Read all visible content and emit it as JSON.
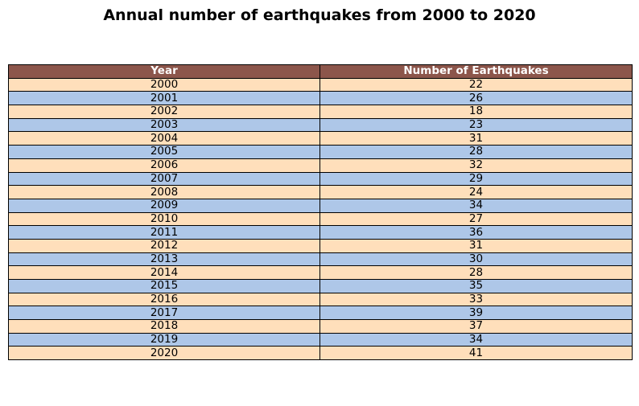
{
  "chart_data": {
    "type": "table",
    "title": "Annual number of earthquakes from 2000 to 2020",
    "columns": [
      "Year",
      "Number of Earthquakes"
    ],
    "rows": [
      [
        "2000",
        "22"
      ],
      [
        "2001",
        "26"
      ],
      [
        "2002",
        "18"
      ],
      [
        "2003",
        "23"
      ],
      [
        "2004",
        "31"
      ],
      [
        "2005",
        "28"
      ],
      [
        "2006",
        "32"
      ],
      [
        "2007",
        "29"
      ],
      [
        "2008",
        "24"
      ],
      [
        "2009",
        "34"
      ],
      [
        "2010",
        "27"
      ],
      [
        "2011",
        "36"
      ],
      [
        "2012",
        "31"
      ],
      [
        "2013",
        "30"
      ],
      [
        "2014",
        "28"
      ],
      [
        "2015",
        "35"
      ],
      [
        "2016",
        "33"
      ],
      [
        "2017",
        "39"
      ],
      [
        "2018",
        "37"
      ],
      [
        "2019",
        "34"
      ],
      [
        "2020",
        "41"
      ]
    ],
    "colors": {
      "header_bg": "#8c564b",
      "header_text": "#ffffff",
      "row_even": "#ffdfbb",
      "row_odd": "#aec7e8",
      "border": "#000000"
    }
  }
}
